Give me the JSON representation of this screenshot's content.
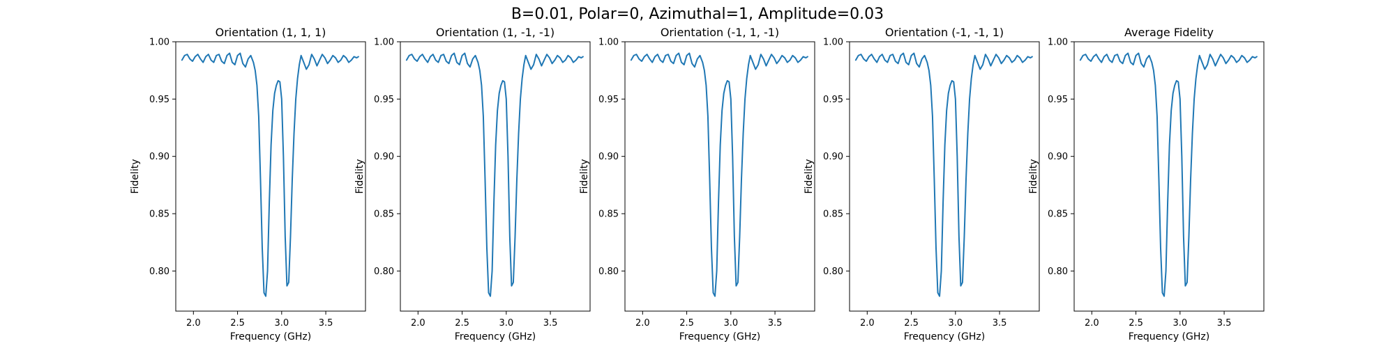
{
  "figure": {
    "suptitle": "B=0.01, Polar=0, Azimuthal=1, Amplitude=0.03"
  },
  "chart_data": [
    {
      "type": "line",
      "title": "Orientation (1, 1, 1)",
      "xlabel": "Frequency (GHz)",
      "ylabel": "Fidelity",
      "xlim": [
        1.8,
        3.95
      ],
      "ylim": [
        0.765,
        1.0
      ],
      "xticks": [
        2.0,
        2.5,
        3.0,
        3.5
      ],
      "xtick_labels": [
        "2.0",
        "2.5",
        "3.0",
        "3.5"
      ],
      "yticks": [
        0.8,
        0.85,
        0.9,
        0.95,
        1.0
      ],
      "ytick_labels": [
        "0.80",
        "0.85",
        "0.90",
        "0.95",
        "1.00"
      ],
      "grid": false,
      "color": "#1f77b4",
      "x": [
        1.87,
        1.9,
        1.93,
        1.96,
        1.99,
        2.02,
        2.05,
        2.08,
        2.11,
        2.14,
        2.17,
        2.2,
        2.23,
        2.26,
        2.29,
        2.32,
        2.35,
        2.38,
        2.41,
        2.44,
        2.47,
        2.5,
        2.53,
        2.56,
        2.59,
        2.62,
        2.65,
        2.68,
        2.7,
        2.72,
        2.74,
        2.76,
        2.78,
        2.8,
        2.82,
        2.84,
        2.86,
        2.88,
        2.9,
        2.92,
        2.94,
        2.96,
        2.98,
        3.0,
        3.02,
        3.04,
        3.06,
        3.08,
        3.1,
        3.12,
        3.14,
        3.16,
        3.18,
        3.2,
        3.22,
        3.25,
        3.28,
        3.31,
        3.34,
        3.37,
        3.4,
        3.43,
        3.46,
        3.49,
        3.52,
        3.55,
        3.58,
        3.61,
        3.64,
        3.67,
        3.7,
        3.73,
        3.76,
        3.79,
        3.82,
        3.85,
        3.87
      ],
      "y": [
        0.984,
        0.988,
        0.989,
        0.985,
        0.983,
        0.987,
        0.989,
        0.985,
        0.982,
        0.987,
        0.989,
        0.984,
        0.982,
        0.988,
        0.989,
        0.983,
        0.981,
        0.988,
        0.99,
        0.982,
        0.98,
        0.988,
        0.99,
        0.981,
        0.978,
        0.985,
        0.988,
        0.982,
        0.975,
        0.962,
        0.935,
        0.88,
        0.82,
        0.781,
        0.778,
        0.8,
        0.86,
        0.91,
        0.94,
        0.955,
        0.962,
        0.966,
        0.965,
        0.95,
        0.9,
        0.83,
        0.787,
        0.79,
        0.83,
        0.88,
        0.92,
        0.95,
        0.968,
        0.98,
        0.988,
        0.982,
        0.976,
        0.98,
        0.989,
        0.985,
        0.979,
        0.984,
        0.989,
        0.986,
        0.981,
        0.984,
        0.988,
        0.986,
        0.982,
        0.984,
        0.988,
        0.986,
        0.982,
        0.984,
        0.987,
        0.986,
        0.987
      ]
    },
    {
      "type": "line",
      "title": "Orientation (1, -1, -1)",
      "xlabel": "Frequency (GHz)",
      "ylabel": "Fidelity",
      "xlim": [
        1.8,
        3.95
      ],
      "ylim": [
        0.765,
        1.0
      ],
      "xticks": [
        2.0,
        2.5,
        3.0,
        3.5
      ],
      "xtick_labels": [
        "2.0",
        "2.5",
        "3.0",
        "3.5"
      ],
      "yticks": [
        0.8,
        0.85,
        0.9,
        0.95,
        1.0
      ],
      "ytick_labels": [
        "0.80",
        "0.85",
        "0.90",
        "0.95",
        "1.00"
      ],
      "grid": false,
      "color": "#1f77b4",
      "x": [
        1.87,
        1.9,
        1.93,
        1.96,
        1.99,
        2.02,
        2.05,
        2.08,
        2.11,
        2.14,
        2.17,
        2.2,
        2.23,
        2.26,
        2.29,
        2.32,
        2.35,
        2.38,
        2.41,
        2.44,
        2.47,
        2.5,
        2.53,
        2.56,
        2.59,
        2.62,
        2.65,
        2.68,
        2.7,
        2.72,
        2.74,
        2.76,
        2.78,
        2.8,
        2.82,
        2.84,
        2.86,
        2.88,
        2.9,
        2.92,
        2.94,
        2.96,
        2.98,
        3.0,
        3.02,
        3.04,
        3.06,
        3.08,
        3.1,
        3.12,
        3.14,
        3.16,
        3.18,
        3.2,
        3.22,
        3.25,
        3.28,
        3.31,
        3.34,
        3.37,
        3.4,
        3.43,
        3.46,
        3.49,
        3.52,
        3.55,
        3.58,
        3.61,
        3.64,
        3.67,
        3.7,
        3.73,
        3.76,
        3.79,
        3.82,
        3.85,
        3.87
      ],
      "y": [
        0.984,
        0.988,
        0.989,
        0.985,
        0.983,
        0.987,
        0.989,
        0.985,
        0.982,
        0.987,
        0.989,
        0.984,
        0.982,
        0.988,
        0.989,
        0.983,
        0.981,
        0.988,
        0.99,
        0.982,
        0.98,
        0.988,
        0.99,
        0.981,
        0.978,
        0.985,
        0.988,
        0.982,
        0.975,
        0.962,
        0.935,
        0.88,
        0.82,
        0.781,
        0.778,
        0.8,
        0.86,
        0.91,
        0.94,
        0.955,
        0.962,
        0.966,
        0.965,
        0.95,
        0.9,
        0.83,
        0.787,
        0.79,
        0.83,
        0.88,
        0.92,
        0.95,
        0.968,
        0.98,
        0.988,
        0.982,
        0.976,
        0.98,
        0.989,
        0.985,
        0.979,
        0.984,
        0.989,
        0.986,
        0.981,
        0.984,
        0.988,
        0.986,
        0.982,
        0.984,
        0.988,
        0.986,
        0.982,
        0.984,
        0.987,
        0.986,
        0.987
      ]
    },
    {
      "type": "line",
      "title": "Orientation (-1, 1, -1)",
      "xlabel": "Frequency (GHz)",
      "ylabel": "Fidelity",
      "xlim": [
        1.8,
        3.95
      ],
      "ylim": [
        0.765,
        1.0
      ],
      "xticks": [
        2.0,
        2.5,
        3.0,
        3.5
      ],
      "xtick_labels": [
        "2.0",
        "2.5",
        "3.0",
        "3.5"
      ],
      "yticks": [
        0.8,
        0.85,
        0.9,
        0.95,
        1.0
      ],
      "ytick_labels": [
        "0.80",
        "0.85",
        "0.90",
        "0.95",
        "1.00"
      ],
      "grid": false,
      "color": "#1f77b4",
      "x": [
        1.87,
        1.9,
        1.93,
        1.96,
        1.99,
        2.02,
        2.05,
        2.08,
        2.11,
        2.14,
        2.17,
        2.2,
        2.23,
        2.26,
        2.29,
        2.32,
        2.35,
        2.38,
        2.41,
        2.44,
        2.47,
        2.5,
        2.53,
        2.56,
        2.59,
        2.62,
        2.65,
        2.68,
        2.7,
        2.72,
        2.74,
        2.76,
        2.78,
        2.8,
        2.82,
        2.84,
        2.86,
        2.88,
        2.9,
        2.92,
        2.94,
        2.96,
        2.98,
        3.0,
        3.02,
        3.04,
        3.06,
        3.08,
        3.1,
        3.12,
        3.14,
        3.16,
        3.18,
        3.2,
        3.22,
        3.25,
        3.28,
        3.31,
        3.34,
        3.37,
        3.4,
        3.43,
        3.46,
        3.49,
        3.52,
        3.55,
        3.58,
        3.61,
        3.64,
        3.67,
        3.7,
        3.73,
        3.76,
        3.79,
        3.82,
        3.85,
        3.87
      ],
      "y": [
        0.984,
        0.988,
        0.989,
        0.985,
        0.983,
        0.987,
        0.989,
        0.985,
        0.982,
        0.987,
        0.989,
        0.984,
        0.982,
        0.988,
        0.989,
        0.983,
        0.981,
        0.988,
        0.99,
        0.982,
        0.98,
        0.988,
        0.99,
        0.981,
        0.978,
        0.985,
        0.988,
        0.982,
        0.975,
        0.962,
        0.935,
        0.88,
        0.82,
        0.781,
        0.778,
        0.8,
        0.86,
        0.91,
        0.94,
        0.955,
        0.962,
        0.966,
        0.965,
        0.95,
        0.9,
        0.83,
        0.787,
        0.79,
        0.83,
        0.88,
        0.92,
        0.95,
        0.968,
        0.98,
        0.988,
        0.982,
        0.976,
        0.98,
        0.989,
        0.985,
        0.979,
        0.984,
        0.989,
        0.986,
        0.981,
        0.984,
        0.988,
        0.986,
        0.982,
        0.984,
        0.988,
        0.986,
        0.982,
        0.984,
        0.987,
        0.986,
        0.987
      ]
    },
    {
      "type": "line",
      "title": "Orientation (-1, -1, 1)",
      "xlabel": "Frequency (GHz)",
      "ylabel": "Fidelity",
      "xlim": [
        1.8,
        3.95
      ],
      "ylim": [
        0.765,
        1.0
      ],
      "xticks": [
        2.0,
        2.5,
        3.0,
        3.5
      ],
      "xtick_labels": [
        "2.0",
        "2.5",
        "3.0",
        "3.5"
      ],
      "yticks": [
        0.8,
        0.85,
        0.9,
        0.95,
        1.0
      ],
      "ytick_labels": [
        "0.80",
        "0.85",
        "0.90",
        "0.95",
        "1.00"
      ],
      "grid": false,
      "color": "#1f77b4",
      "x": [
        1.87,
        1.9,
        1.93,
        1.96,
        1.99,
        2.02,
        2.05,
        2.08,
        2.11,
        2.14,
        2.17,
        2.2,
        2.23,
        2.26,
        2.29,
        2.32,
        2.35,
        2.38,
        2.41,
        2.44,
        2.47,
        2.5,
        2.53,
        2.56,
        2.59,
        2.62,
        2.65,
        2.68,
        2.7,
        2.72,
        2.74,
        2.76,
        2.78,
        2.8,
        2.82,
        2.84,
        2.86,
        2.88,
        2.9,
        2.92,
        2.94,
        2.96,
        2.98,
        3.0,
        3.02,
        3.04,
        3.06,
        3.08,
        3.1,
        3.12,
        3.14,
        3.16,
        3.18,
        3.2,
        3.22,
        3.25,
        3.28,
        3.31,
        3.34,
        3.37,
        3.4,
        3.43,
        3.46,
        3.49,
        3.52,
        3.55,
        3.58,
        3.61,
        3.64,
        3.67,
        3.7,
        3.73,
        3.76,
        3.79,
        3.82,
        3.85,
        3.87
      ],
      "y": [
        0.984,
        0.988,
        0.989,
        0.985,
        0.983,
        0.987,
        0.989,
        0.985,
        0.982,
        0.987,
        0.989,
        0.984,
        0.982,
        0.988,
        0.989,
        0.983,
        0.981,
        0.988,
        0.99,
        0.982,
        0.98,
        0.988,
        0.99,
        0.981,
        0.978,
        0.985,
        0.988,
        0.982,
        0.975,
        0.962,
        0.935,
        0.88,
        0.82,
        0.781,
        0.778,
        0.8,
        0.86,
        0.91,
        0.94,
        0.955,
        0.962,
        0.966,
        0.965,
        0.95,
        0.9,
        0.83,
        0.787,
        0.79,
        0.83,
        0.88,
        0.92,
        0.95,
        0.968,
        0.98,
        0.988,
        0.982,
        0.976,
        0.98,
        0.989,
        0.985,
        0.979,
        0.984,
        0.989,
        0.986,
        0.981,
        0.984,
        0.988,
        0.986,
        0.982,
        0.984,
        0.988,
        0.986,
        0.982,
        0.984,
        0.987,
        0.986,
        0.987
      ]
    },
    {
      "type": "line",
      "title": "Average Fidelity",
      "xlabel": "Frequency (GHz)",
      "ylabel": "Fidelity",
      "xlim": [
        1.8,
        3.95
      ],
      "ylim": [
        0.765,
        1.0
      ],
      "xticks": [
        2.0,
        2.5,
        3.0,
        3.5
      ],
      "xtick_labels": [
        "2.0",
        "2.5",
        "3.0",
        "3.5"
      ],
      "yticks": [
        0.8,
        0.85,
        0.9,
        0.95,
        1.0
      ],
      "ytick_labels": [
        "0.80",
        "0.85",
        "0.90",
        "0.95",
        "1.00"
      ],
      "grid": false,
      "color": "#1f77b4",
      "x": [
        1.87,
        1.9,
        1.93,
        1.96,
        1.99,
        2.02,
        2.05,
        2.08,
        2.11,
        2.14,
        2.17,
        2.2,
        2.23,
        2.26,
        2.29,
        2.32,
        2.35,
        2.38,
        2.41,
        2.44,
        2.47,
        2.5,
        2.53,
        2.56,
        2.59,
        2.62,
        2.65,
        2.68,
        2.7,
        2.72,
        2.74,
        2.76,
        2.78,
        2.8,
        2.82,
        2.84,
        2.86,
        2.88,
        2.9,
        2.92,
        2.94,
        2.96,
        2.98,
        3.0,
        3.02,
        3.04,
        3.06,
        3.08,
        3.1,
        3.12,
        3.14,
        3.16,
        3.18,
        3.2,
        3.22,
        3.25,
        3.28,
        3.31,
        3.34,
        3.37,
        3.4,
        3.43,
        3.46,
        3.49,
        3.52,
        3.55,
        3.58,
        3.61,
        3.64,
        3.67,
        3.7,
        3.73,
        3.76,
        3.79,
        3.82,
        3.85,
        3.87
      ],
      "y": [
        0.984,
        0.988,
        0.989,
        0.985,
        0.983,
        0.987,
        0.989,
        0.985,
        0.982,
        0.987,
        0.989,
        0.984,
        0.982,
        0.988,
        0.989,
        0.983,
        0.981,
        0.988,
        0.99,
        0.982,
        0.98,
        0.988,
        0.99,
        0.981,
        0.978,
        0.985,
        0.988,
        0.982,
        0.975,
        0.962,
        0.935,
        0.88,
        0.82,
        0.781,
        0.778,
        0.8,
        0.86,
        0.91,
        0.94,
        0.955,
        0.962,
        0.966,
        0.965,
        0.95,
        0.9,
        0.83,
        0.787,
        0.79,
        0.83,
        0.88,
        0.92,
        0.95,
        0.968,
        0.98,
        0.988,
        0.982,
        0.976,
        0.98,
        0.989,
        0.985,
        0.979,
        0.984,
        0.989,
        0.986,
        0.981,
        0.984,
        0.988,
        0.986,
        0.982,
        0.984,
        0.988,
        0.986,
        0.982,
        0.984,
        0.987,
        0.986,
        0.987
      ]
    }
  ]
}
